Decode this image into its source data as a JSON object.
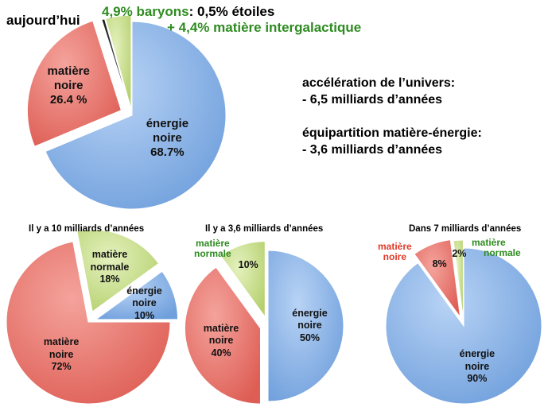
{
  "header": {
    "today_label": "aujourd’hui",
    "baryons_pct": "4,9% baryons",
    "baryons_detail": ": 0,5%  étoiles",
    "intergalactic": "+ 4,4%  matière intergalactique"
  },
  "info": {
    "accel_title": "accélération de l’univers:",
    "accel_value": "- 6,5 milliards d’années",
    "equi_title": "équipartition matière-énergie:",
    "equi_value": "- 3,6 milliards d’années"
  },
  "outside_labels": {
    "normal_3_6": [
      "matière",
      "normale"
    ],
    "dark_7": [
      "matière",
      "noire"
    ],
    "normal_7": [
      "matière",
      "normale"
    ]
  },
  "colors": {
    "energy": "#8ab4e8",
    "dark": "#ea7a72",
    "normal": "#cde393",
    "stars": "#111111"
  },
  "chart_data": [
    {
      "type": "pie",
      "title": "aujourd’hui",
      "slices": [
        {
          "key": "energy",
          "label": [
            "énergie",
            "noire",
            "68.7%"
          ],
          "value": 68.7
        },
        {
          "key": "dark",
          "label": [
            "matière",
            "noire",
            "26.4 %"
          ],
          "value": 26.4
        },
        {
          "key": "stars",
          "label": [],
          "value": 0.5
        },
        {
          "key": "normal",
          "label": [],
          "value": 4.4
        }
      ]
    },
    {
      "type": "pie",
      "title": "Il y a 10 milliards d’années",
      "slices": [
        {
          "key": "dark",
          "label": [
            "matière",
            "noire",
            "72%"
          ],
          "value": 72
        },
        {
          "key": "normal",
          "label": [
            "matière",
            "normale",
            "18%"
          ],
          "value": 18
        },
        {
          "key": "energy",
          "label": [
            "énergie",
            "noire",
            "10%"
          ],
          "value": 10
        }
      ]
    },
    {
      "type": "pie",
      "title": "Il y a 3,6 milliards d’années",
      "slices": [
        {
          "key": "energy",
          "label": [
            "énergie",
            "noire",
            "50%"
          ],
          "value": 50
        },
        {
          "key": "dark",
          "label": [
            "matière",
            "noire",
            "40%"
          ],
          "value": 40
        },
        {
          "key": "normal",
          "label": [
            "10%"
          ],
          "value": 10
        }
      ]
    },
    {
      "type": "pie",
      "title": "Dans 7 milliards d’années",
      "slices": [
        {
          "key": "energy",
          "label": [
            "énergie",
            "noire",
            "90%"
          ],
          "value": 90
        },
        {
          "key": "dark",
          "label": [
            "8%"
          ],
          "value": 8
        },
        {
          "key": "normal",
          "label": [
            "2%"
          ],
          "value": 2
        }
      ]
    }
  ]
}
